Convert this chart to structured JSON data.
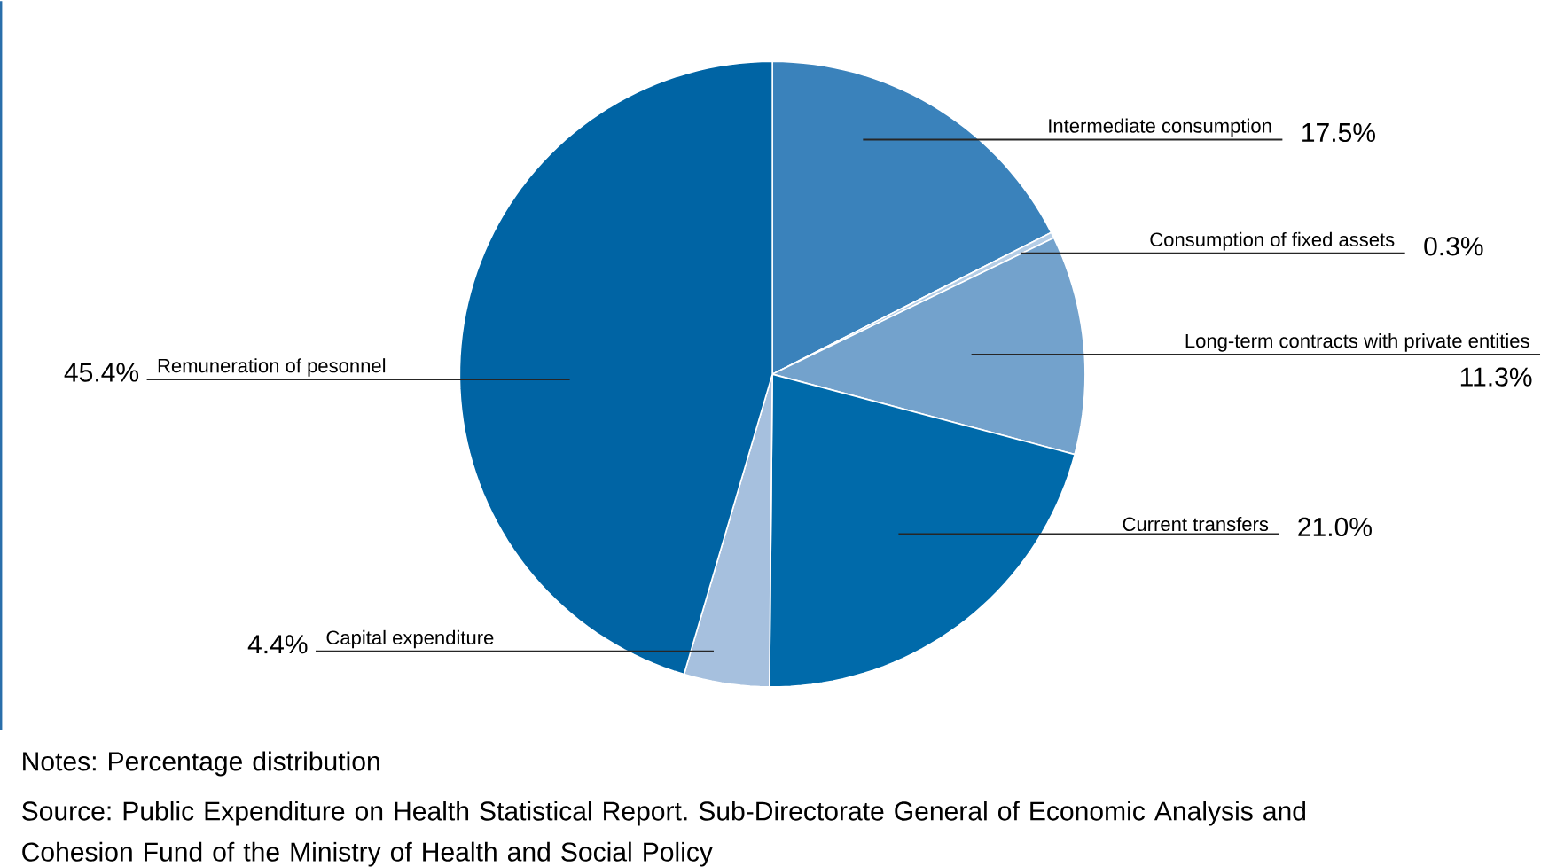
{
  "chart_data": {
    "type": "pie",
    "categories": [
      "Intermediate consumption",
      "Consumption of fixed assets",
      "Long-term contracts with private entities",
      "Current transfers",
      "Capital expenditure",
      "Remuneration of pesonnel"
    ],
    "values": [
      17.5,
      0.3,
      11.3,
      21.0,
      4.4,
      45.4
    ],
    "value_labels": [
      "17.5%",
      "0.3%",
      "11.3%",
      "21.0%",
      "4.4%",
      "45.4%"
    ],
    "colors": [
      "#3a82bb",
      "#b4cde6",
      "#73a2cc",
      "#006aaa",
      "#a6c0de",
      "#0064a4"
    ],
    "annotations": [
      "Notes: Percentage distribution",
      "Source: Public Expenditure on Health Statistical Report. Sub-Directorate General of Economic Analysis and Cohesion Fund of the Ministry of Health and Social Policy"
    ]
  }
}
